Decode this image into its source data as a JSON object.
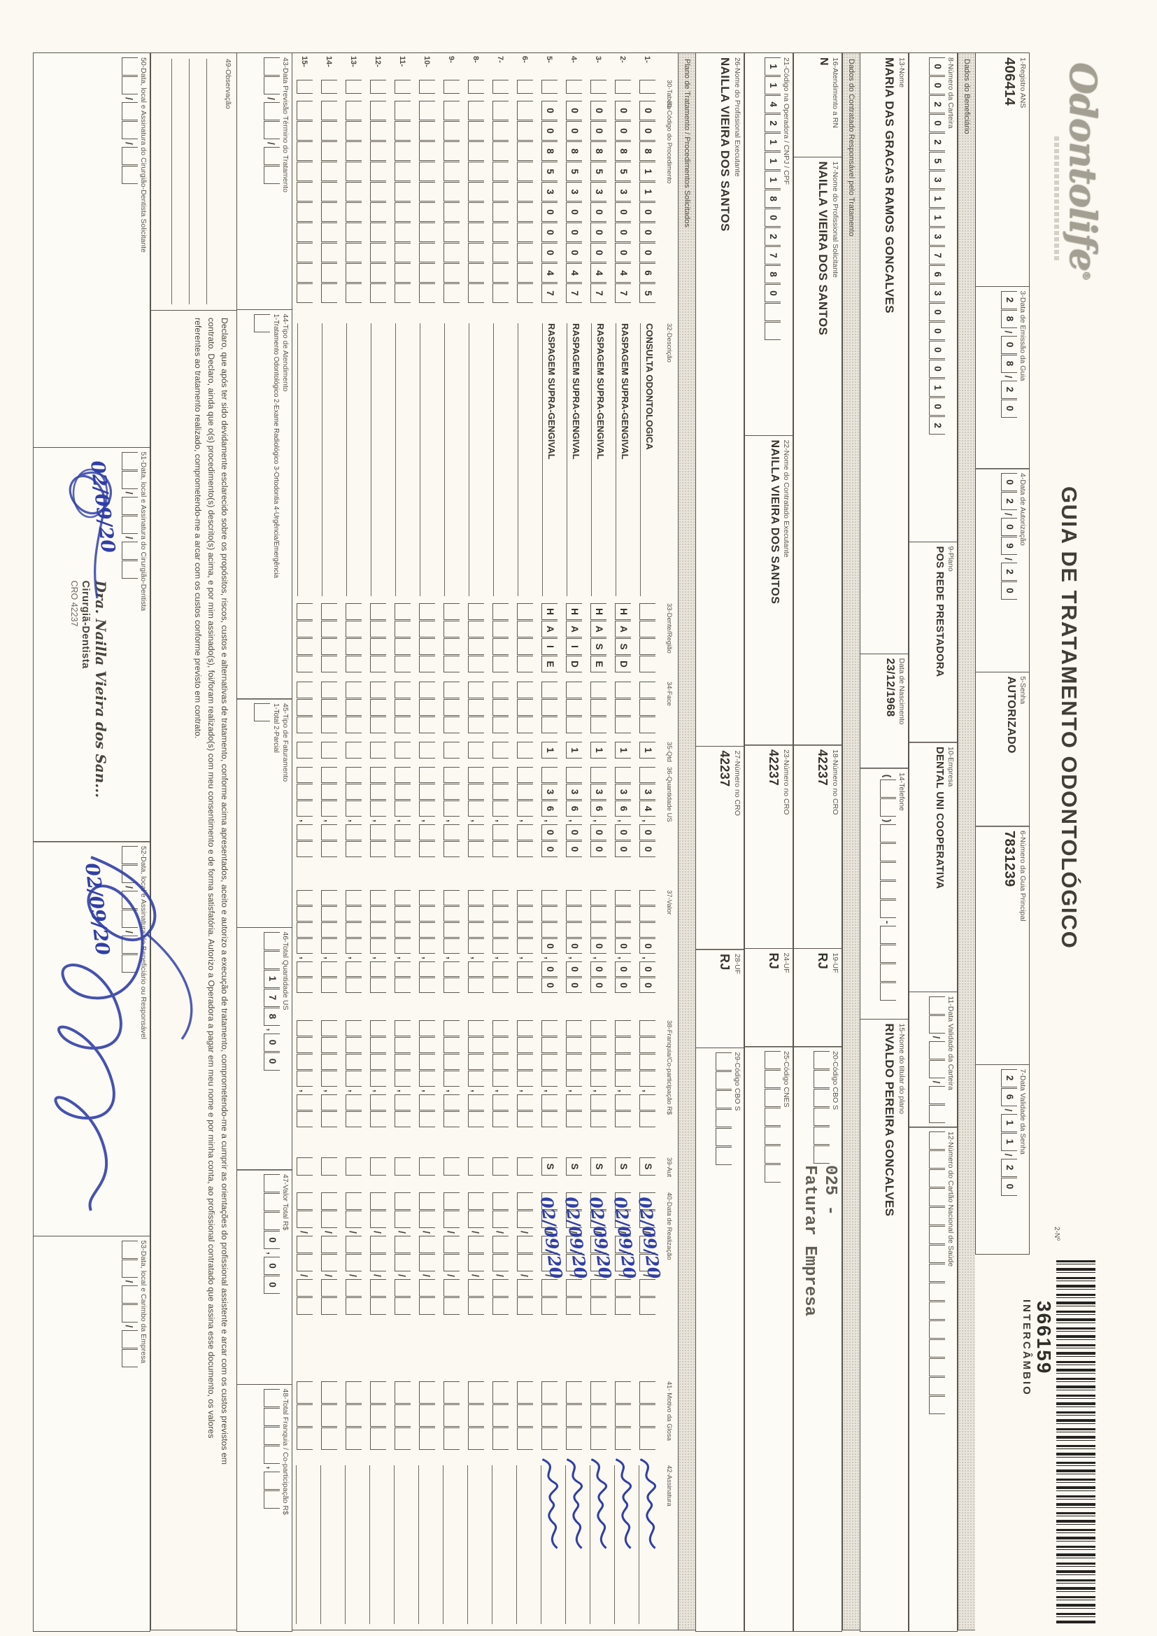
{
  "brand": {
    "logo": "Odontolife",
    "mark": "®"
  },
  "title": "GUIA DE TRATAMENTO ODONTOLÓGICO",
  "barcode": {
    "field_label": "2-Nº",
    "number": "366159",
    "tag": "INTERCÂMBIO"
  },
  "header": {
    "registro_label": "1-Registro ANS",
    "registro": "406414",
    "emissao_label": "3-Data de Emissão da Guia",
    "emissao_boxes": "28/08/20",
    "autorizacao_label": "4-Data de Autorização",
    "autorizacao_boxes": "02/09/20",
    "senha_label": "5-Senha",
    "senha": "AUTORIZADO",
    "guia_principal_label": "6-Número da Guia Principal",
    "guia_principal": "7831239",
    "validade_senha_label": "7-Data Validade da Senha",
    "validade_senha_boxes": "26/11/20"
  },
  "sections": {
    "beneficiario": "Dados do Beneficiário",
    "contratado": "Dados do Contratado Responsável pelo Tratamento",
    "plano": "Plano de Tratamento / Procedimentos Solicitados"
  },
  "beneficiario": {
    "carteira_label": "8-Número da Carteira",
    "carteira_boxes": "00202531137630000102",
    "plano_label": "9-Plano",
    "plano": "POS REDE PRESTADORA",
    "empresa_label": "10-Empresa",
    "empresa": "DENTAL UNI COOPERATIVA",
    "validade_carteira_label": "11-Data Validade da Carteira",
    "validade_carteira_boxes": "  /  /  ",
    "cns_label": "12-Número do Cartão Nacional de Saúde",
    "cns_boxes": "               ",
    "nome_label": "13-Nome",
    "nome": "MARIA DAS GRACAS RAMOS GONCALVES",
    "nascimento_label": "Data de Nascimento",
    "nascimento": "23/12/1968",
    "telefone_label": "14-Telefone",
    "telefone_boxes": "(  )     -    ",
    "titular_label": "15-Nome do titular do plano",
    "titular": "RIVALDO PEREIRA GONCALVES"
  },
  "solicitante": {
    "rn_label": "16-Atendimento a RN",
    "rn": "N",
    "nome_label": "17-Nome do Profissional Solicitante",
    "nome": "NAILLA VIEIRA DOS SANTOS",
    "cro_label": "18-Número no CRO",
    "cro": "42237",
    "uf_label": "19-UF",
    "uf": "RJ",
    "cbo_label": "20-Código CBO S",
    "cbo_boxes": "      "
  },
  "overprint": {
    "line1": "025 -",
    "line2": "Faturar Empresa"
  },
  "executante": {
    "codigo_label": "21-Código na Operadora / CNPJ / CPF",
    "codigo_boxes": "1142111802780  ",
    "nome_label": "22-Nome do Contratado Executante",
    "nome": "NAILLA VIEIRA DOS SANTOS",
    "cro_label": "23-Número no CRO",
    "cro": "42237",
    "uf_label": "24-UF",
    "uf": "RJ",
    "cnes_label": "25-Código CNES",
    "cnes_boxes": "       ",
    "prof_label": "26-Nome do Profissional Executante",
    "prof": "NAILLA VIEIRA DOS SANTOS",
    "prof_cro_label": "27-Número no CRO",
    "prof_cro": "42237",
    "prof_uf_label": "28-UF",
    "prof_uf": "RJ",
    "prof_cbo_label": "29-Código CBO S",
    "prof_cbo_boxes": "      "
  },
  "table": {
    "headers": {
      "tabela": "30-Tabela",
      "codigo": "31-Código do Procedimento",
      "descricao": "32-Descrição",
      "dente": "33-Dente/Região",
      "face": "34-Face",
      "qtd": "35-Qtd",
      "us": "36-Quantidade US",
      "valor": "37-Valor",
      "franquia": "38-Franquia/Co-participação R$",
      "aut": "39-Aut",
      "data": "40-Data de Realização",
      "glosa": "41- Motivo da Glosa",
      "assinatura": "42-Assinatura"
    },
    "rows": [
      {
        "n": "1-",
        "tab": " ",
        "code": "0081100065",
        "desc": "CONSULTA ODONTOLOGICA",
        "dente": "    ",
        "face": "   ",
        "qtd": "1",
        "us": " 34,00",
        "valor": "   0,00",
        "franquia": "    ,  ",
        "aut": "S",
        "date": "  /  /  ",
        "hand": "02/09/20",
        "glosa": "   ",
        "signed": true
      },
      {
        "n": "2-",
        "tab": " ",
        "code": "0085300047",
        "desc": "RASPAGEM SUPRA-GENGIVAL",
        "dente": "HASD",
        "face": "   ",
        "qtd": "1",
        "us": " 36,00",
        "valor": "   0,00",
        "franquia": "    ,  ",
        "aut": "S",
        "date": "  /  /  ",
        "hand": "02/09/20",
        "glosa": "   ",
        "signed": true
      },
      {
        "n": "3-",
        "tab": " ",
        "code": "0085300047",
        "desc": "RASPAGEM SUPRA-GENGIVAL",
        "dente": "HASE",
        "face": "   ",
        "qtd": "1",
        "us": " 36,00",
        "valor": "   0,00",
        "franquia": "    ,  ",
        "aut": "S",
        "date": "  /  /  ",
        "hand": "02/09/20",
        "glosa": "   ",
        "signed": true
      },
      {
        "n": "4-",
        "tab": " ",
        "code": "0085300047",
        "desc": "RASPAGEM SUPRA-GENGIVAL",
        "dente": "HAID",
        "face": "   ",
        "qtd": "1",
        "us": " 36,00",
        "valor": "   0,00",
        "franquia": "    ,  ",
        "aut": "S",
        "date": "  /  /  ",
        "hand": "02/09/20",
        "glosa": "   ",
        "signed": true
      },
      {
        "n": "5-",
        "tab": " ",
        "code": "0085300047",
        "desc": "RASPAGEM SUPRA-GENGIVAL",
        "dente": "HAIE",
        "face": "   ",
        "qtd": "1",
        "us": " 36,00",
        "valor": "   0,00",
        "franquia": "    ,  ",
        "aut": "S",
        "date": "  /  /  ",
        "hand": "02/09/20",
        "glosa": "   ",
        "signed": true
      },
      {
        "n": "6-",
        "tab": " ",
        "code": "          ",
        "desc": "",
        "dente": "    ",
        "face": "   ",
        "qtd": " ",
        "us": "   ,  ",
        "valor": "    ,  ",
        "franquia": "    ,  ",
        "aut": " ",
        "date": "  /  /  ",
        "hand": "",
        "glosa": "   ",
        "signed": false
      },
      {
        "n": "7-",
        "tab": " ",
        "code": "          ",
        "desc": "",
        "dente": "    ",
        "face": "   ",
        "qtd": " ",
        "us": "   ,  ",
        "valor": "    ,  ",
        "franquia": "    ,  ",
        "aut": " ",
        "date": "  /  /  ",
        "hand": "",
        "glosa": "   ",
        "signed": false
      },
      {
        "n": "8-",
        "tab": " ",
        "code": "          ",
        "desc": "",
        "dente": "    ",
        "face": "   ",
        "qtd": " ",
        "us": "   ,  ",
        "valor": "    ,  ",
        "franquia": "    ,  ",
        "aut": " ",
        "date": "  /  /  ",
        "hand": "",
        "glosa": "   ",
        "signed": false
      },
      {
        "n": "9-",
        "tab": " ",
        "code": "          ",
        "desc": "",
        "dente": "    ",
        "face": "   ",
        "qtd": " ",
        "us": "   ,  ",
        "valor": "    ,  ",
        "franquia": "    ,  ",
        "aut": " ",
        "date": "  /  /  ",
        "hand": "",
        "glosa": "   ",
        "signed": false
      },
      {
        "n": "10-",
        "tab": " ",
        "code": "          ",
        "desc": "",
        "dente": "    ",
        "face": "   ",
        "qtd": " ",
        "us": "   ,  ",
        "valor": "    ,  ",
        "franquia": "    ,  ",
        "aut": " ",
        "date": "  /  /  ",
        "hand": "",
        "glosa": "   ",
        "signed": false
      },
      {
        "n": "11-",
        "tab": " ",
        "code": "          ",
        "desc": "",
        "dente": "    ",
        "face": "   ",
        "qtd": " ",
        "us": "   ,  ",
        "valor": "    ,  ",
        "franquia": "    ,  ",
        "aut": " ",
        "date": "  /  /  ",
        "hand": "",
        "glosa": "   ",
        "signed": false
      },
      {
        "n": "12-",
        "tab": " ",
        "code": "          ",
        "desc": "",
        "dente": "    ",
        "face": "   ",
        "qtd": " ",
        "us": "   ,  ",
        "valor": "    ,  ",
        "franquia": "    ,  ",
        "aut": " ",
        "date": "  /  /  ",
        "hand": "",
        "glosa": "   ",
        "signed": false
      },
      {
        "n": "13-",
        "tab": " ",
        "code": "          ",
        "desc": "",
        "dente": "    ",
        "face": "   ",
        "qtd": " ",
        "us": "   ,  ",
        "valor": "    ,  ",
        "franquia": "    ,  ",
        "aut": " ",
        "date": "  /  /  ",
        "hand": "",
        "glosa": "   ",
        "signed": false
      },
      {
        "n": "14-",
        "tab": " ",
        "code": "          ",
        "desc": "",
        "dente": "    ",
        "face": "   ",
        "qtd": " ",
        "us": "   ,  ",
        "valor": "    ,  ",
        "franquia": "    ,  ",
        "aut": " ",
        "date": "  /  /  ",
        "hand": "",
        "glosa": "   ",
        "signed": false
      },
      {
        "n": "15-",
        "tab": " ",
        "code": "          ",
        "desc": "",
        "dente": "    ",
        "face": "   ",
        "qtd": " ",
        "us": "   ,  ",
        "valor": "    ,  ",
        "franquia": "    ,  ",
        "aut": " ",
        "date": "  /  /  ",
        "hand": "",
        "glosa": "   ",
        "signed": false
      }
    ]
  },
  "totals": {
    "previsao_label": "43-Data Previsão Término do Tratamento",
    "previsao_boxes": "  /  /  ",
    "atendimento_label": "44-Tipo de Atendimento",
    "atendimento_opts": "1-Tratamento Odontológico  2-Exame Radiológico  3-Ortodontia  4-Urgência/Emergência",
    "atendimento_boxes": " ",
    "faturamento_label": "45-Tipo de Faturamento",
    "faturamento_opts": "1-Total  2-Parcial",
    "faturamento_boxes": " ",
    "total_us_label": "46-Total Quantidade US",
    "total_us_boxes": "  178,00",
    "valor_total_label": "47-Valor Total R$",
    "valor_total_boxes": "   0,00",
    "franquia_label": "48-Total Franquia / Co-participação R$",
    "franquia_boxes": "    ,  "
  },
  "observacao_label": "49-Observação",
  "declaration": {
    "lines": [
      "Declaro, que após ter sido devidamente esclarecido sobre os propósitos, riscos, custos e alternativas de tratamento, conforme acima apresentados, aceito e autorizo a execução de tratamento, comprometendo-me a cumprir as orientações do profissional assistente e arcar com os custos previstos em",
      "contrato. Declaro, ainda que o(s) procedimento(s) descrito(s) acima, e por mim assinado(s), foi/foram realizado(s) com meu consentimento e de forma satisfatória. Autorizo a Operadora a pagar em meu nome e por minha conta, ao profissional contratado que assina esse documento, os valores",
      "referentes ao tratamento realizado, comprometendo-me a arcar com os custos conforme previsto em contrato."
    ]
  },
  "signatures": {
    "s50_label": "50-Data, local e Assinatura do Cirurgião-Dentista Solicitante",
    "s50_boxes": "  /  /  ",
    "s51_label": "51-Data, local e Assinatura do Cirurgião-Dentista",
    "s51_boxes": "  /  /  ",
    "s51_hand": "02/09/20",
    "stamp_name": "Dra. Nailla Vieira dos San...",
    "stamp_role": "Cirurgiã-Dentista",
    "stamp_cro": "CRO 42237",
    "s52_label": "52-Data, local e Assinatura do Beneficiário ou Responsável",
    "s52_boxes": "  /  /  ",
    "s52_hand": "02/09/20",
    "s53_label": "53-Data, local e Carimbo da Empresa",
    "s53_boxes": "  /  /  "
  }
}
